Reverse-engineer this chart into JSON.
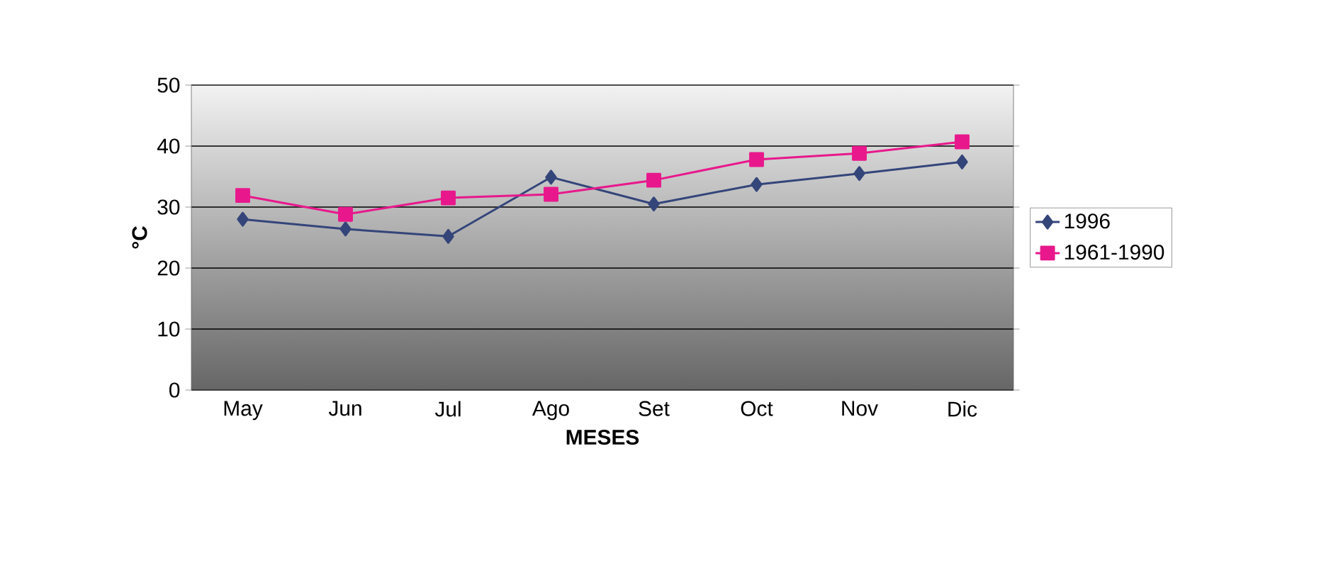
{
  "chart_data": {
    "type": "line",
    "xlabel": "MESES",
    "ylabel": "°C",
    "categories": [
      "May",
      "Jun",
      "Jul",
      "Ago",
      "Set",
      "Oct",
      "Nov",
      "Dic"
    ],
    "series": [
      {
        "name": "1996",
        "color": "#34457a",
        "marker": "diamond",
        "values": [
          28.0,
          26.4,
          25.2,
          34.9,
          30.5,
          33.7,
          35.5,
          37.4
        ]
      },
      {
        "name": "1961-1990",
        "color": "#e8188c",
        "marker": "square",
        "values": [
          31.9,
          28.8,
          31.5,
          32.1,
          34.4,
          37.8,
          38.8,
          40.7
        ]
      }
    ],
    "ylim": [
      0,
      50
    ],
    "yticks": [
      0,
      10,
      20,
      30,
      40,
      50
    ],
    "grid": "y",
    "legend": "right"
  }
}
